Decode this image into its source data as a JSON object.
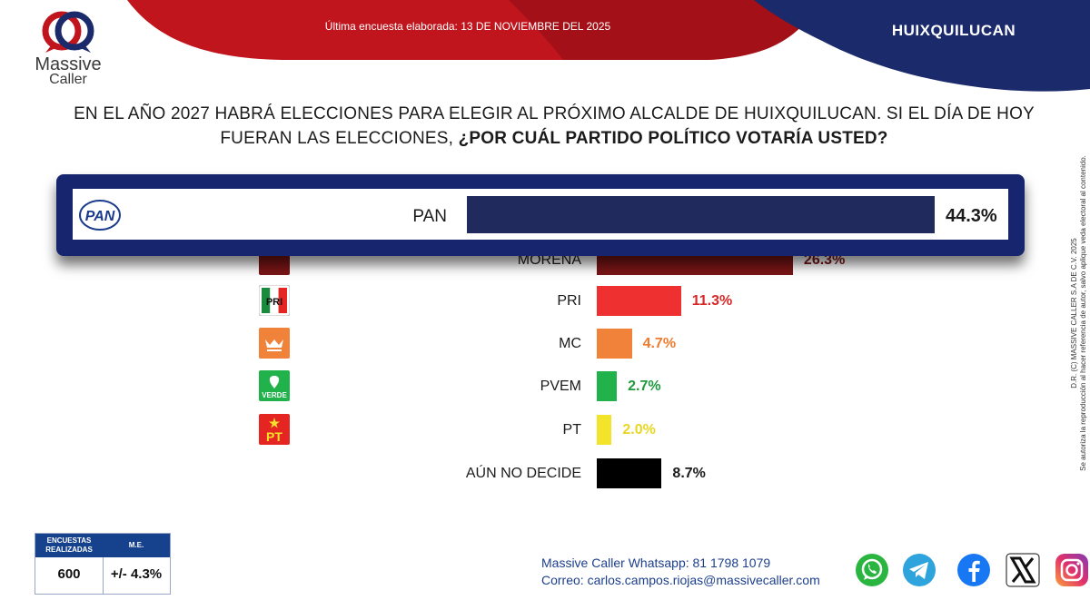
{
  "header": {
    "survey_date": "Última encuesta elaborada: 13 DE NOVIEMBRE DEL 2025",
    "region": "HUIXQUILUCAN",
    "logo_icon": "massive-caller-logo-icon",
    "logo_line1": "Massive",
    "logo_line2": "Caller"
  },
  "question": {
    "line1": "EN EL AÑO 2027 HABRÁ ELECCIONES PARA ELEGIR AL PRÓXIMO ALCALDE DE HUIXQUILUCAN. SI EL DÍA DE HOY",
    "line2_normal": "FUERAN LAS ELECCIONES, ",
    "line2_bold": "¿POR CUÁL PARTIDO POLÍTICO VOTARÍA USTED?"
  },
  "side_text": {
    "line1": "D.R. (C) MASSIVE CALLER S.A DE C.V. 2025",
    "line2": "Se autoriza la reproducción al hacer referencia de autor, salvo aplique veda electoral al contenido."
  },
  "chart_data": {
    "type": "bar",
    "orientation": "horizontal",
    "categories": [
      "PAN",
      "MORENA",
      "PRI",
      "MC",
      "PVEM",
      "PT",
      "AÚN NO DECIDE"
    ],
    "values": [
      44.3,
      26.3,
      11.3,
      4.7,
      2.7,
      2.0,
      8.7
    ],
    "value_labels": [
      "44.3%",
      "26.3%",
      "11.3%",
      "4.7%",
      "2.7%",
      "2.0%",
      "8.7%"
    ],
    "colors": [
      "#212a5c",
      "#7a1516",
      "#ee3030",
      "#f0823a",
      "#22b24c",
      "#f1e42a",
      "#000000"
    ],
    "label_colors": [
      "#1b1b1b",
      "#7a1516",
      "#d62828",
      "#ee7b2e",
      "#1f9a3e",
      "#e8d622",
      "#1b1b1b"
    ],
    "highlighted": "PAN",
    "party_logos": [
      "pan-logo-icon",
      "morena-logo-icon",
      "pri-logo-icon",
      "mc-logo-icon",
      "pvem-logo-icon",
      "pt-logo-icon",
      ""
    ],
    "pan_logo_text": "PAN",
    "pri_logo_text": "PRI",
    "pvem_logo_text": "VERDE",
    "pt_logo_text": "PT"
  },
  "stats_table": {
    "col1_header_line1": "ENCUESTAS",
    "col1_header_line2": "REALIZADAS",
    "col2_header": "M.E.",
    "col1_value": "600",
    "col2_value": "+/- 4.3%"
  },
  "contact": {
    "whatsapp": "Massive Caller Whatsapp: 81 1798 1079",
    "email": "Correo: carlos.campos.riojas@massivecaller.com"
  },
  "social_icons": [
    "whatsapp-icon",
    "telegram-icon",
    "facebook-icon",
    "x-icon",
    "instagram-icon"
  ]
}
